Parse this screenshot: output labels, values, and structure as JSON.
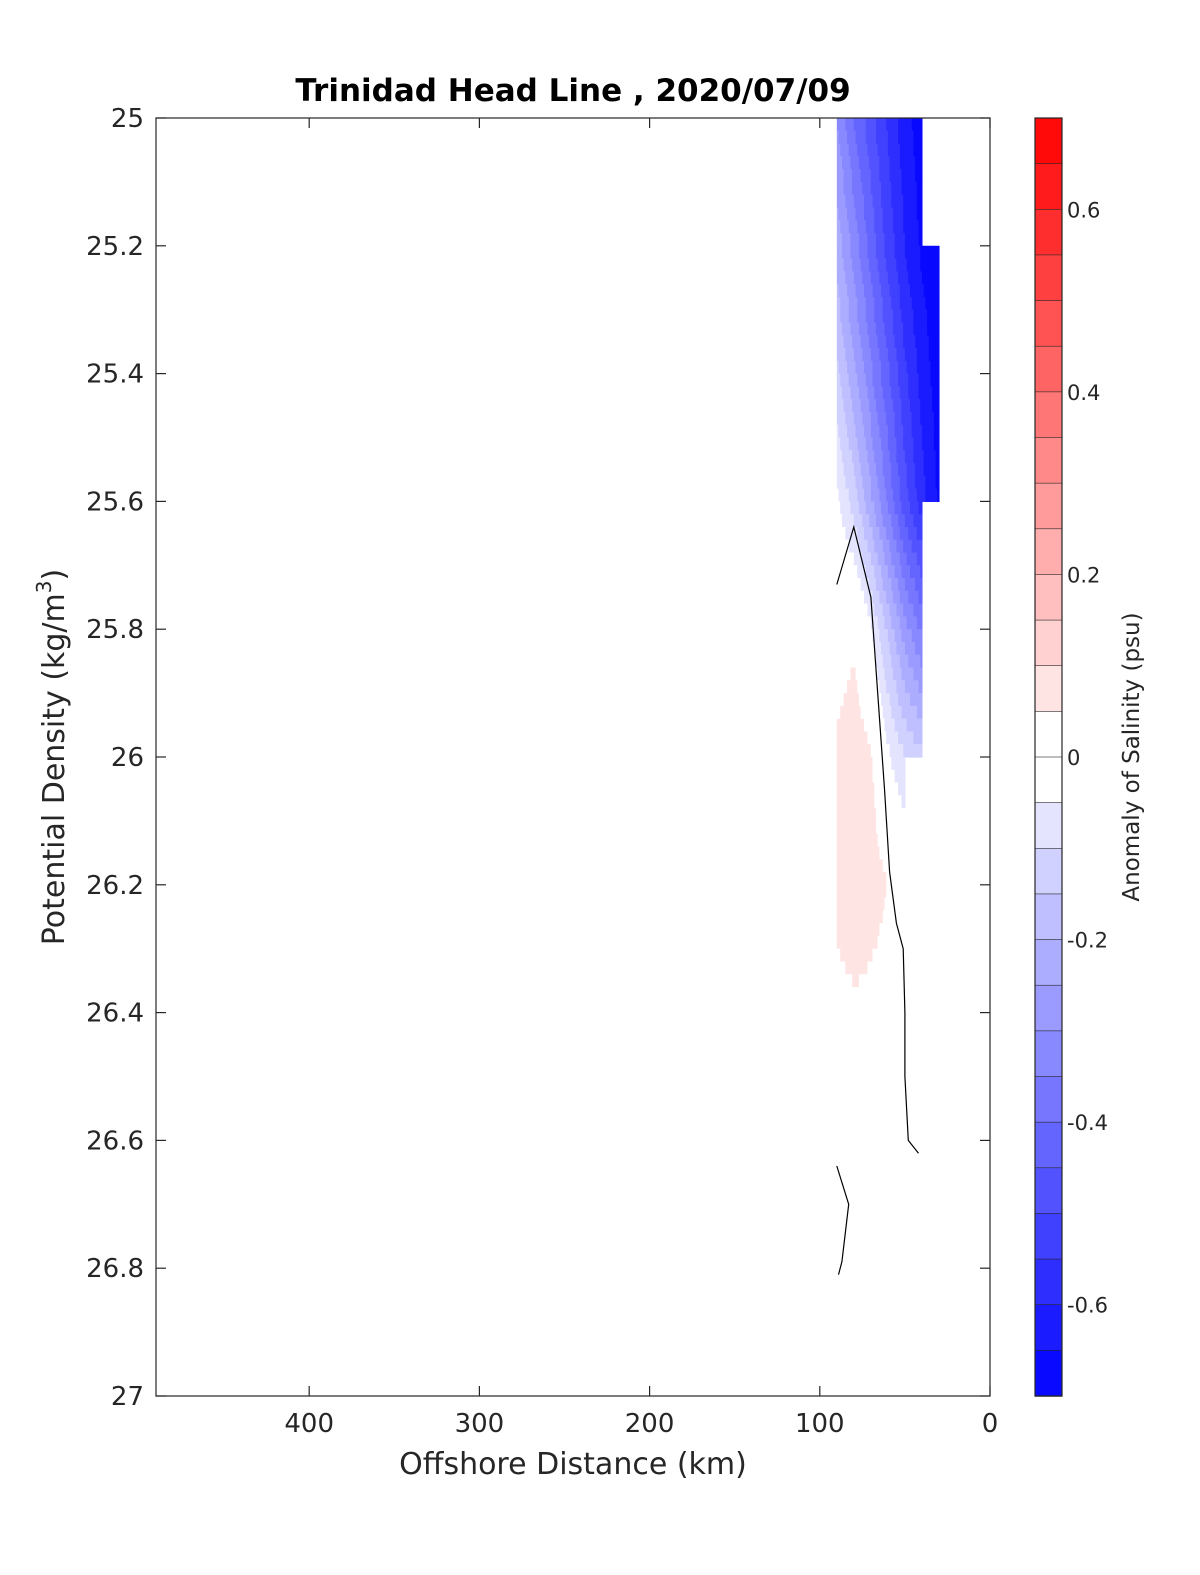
{
  "chart_data": {
    "type": "contour",
    "title": "Trinidad Head Line , 2020/07/09",
    "xlabel": "Offshore Distance (km)",
    "ylabel_main": "Potential Density (kg/m",
    "ylabel_sup": "3",
    "ylabel_close": ")",
    "xlim": [
      490,
      0
    ],
    "ylim": [
      25,
      27
    ],
    "x_reversed": true,
    "y_reversed": true,
    "x_ticks": [
      400,
      300,
      200,
      100,
      0
    ],
    "x_tick_labels": [
      "400",
      "300",
      "200",
      "100",
      "0"
    ],
    "y_ticks": [
      25,
      25.2,
      25.4,
      25.6,
      25.8,
      26,
      26.2,
      26.4,
      26.6,
      26.8,
      27
    ],
    "y_tick_labels": [
      "25",
      "25.2",
      "25.4",
      "25.6",
      "25.8",
      "26",
      "26.2",
      "26.4",
      "26.6",
      "26.8",
      "27"
    ],
    "colorbar": {
      "label": "Anomaly of Salinity (psu)",
      "range": [
        -0.7,
        0.7
      ],
      "step": 0.05,
      "ticks": [
        0.6,
        0.4,
        0.2,
        0,
        -0.2,
        -0.4,
        -0.6
      ],
      "tick_labels": [
        "0.6",
        "0.4",
        "0.2",
        "0",
        "-0.2",
        "-0.4",
        "-0.6"
      ],
      "colormap": "blue-white-red",
      "min_color": "#0000ff",
      "max_color": "#ff0000"
    },
    "station_x": [
      90,
      80,
      70,
      60,
      50,
      40,
      30
    ],
    "density_levels": [
      25.0,
      25.2,
      25.4,
      25.6,
      25.8,
      26.0,
      26.2,
      26.4,
      26.6,
      26.8
    ],
    "anomaly_grid": [
      [
        -0.3,
        -0.4,
        -0.48,
        -0.56,
        -0.63,
        -0.68,
        null
      ],
      [
        -0.22,
        -0.32,
        -0.42,
        -0.52,
        -0.6,
        -0.66,
        -0.69
      ],
      [
        -0.14,
        -0.24,
        -0.34,
        -0.44,
        -0.54,
        -0.62,
        -0.68
      ],
      [
        -0.04,
        -0.12,
        -0.24,
        -0.36,
        -0.48,
        -0.58,
        -0.66
      ],
      [
        0.02,
        0.04,
        -0.04,
        -0.16,
        -0.28,
        -0.36,
        null
      ],
      [
        0.06,
        0.08,
        0.06,
        -0.04,
        -0.1,
        -0.14,
        null
      ],
      [
        0.08,
        0.09,
        0.08,
        0.05,
        0.02,
        null,
        null
      ],
      [
        0.02,
        0.04,
        0.03,
        0.02,
        0.01,
        null,
        null
      ],
      [
        0.01,
        0.02,
        0.02,
        0.01,
        null,
        null,
        null
      ],
      [
        0.01,
        0.02,
        null,
        null,
        null,
        null,
        null
      ]
    ],
    "zero_contours": [
      [
        [
          90,
          25.73
        ],
        [
          80,
          25.64
        ],
        [
          70,
          25.75
        ],
        [
          66,
          25.9
        ],
        [
          62,
          26.05
        ],
        [
          59,
          26.18
        ],
        [
          55,
          26.26
        ],
        [
          51,
          26.3
        ],
        [
          50,
          26.4
        ],
        [
          50,
          26.5
        ],
        [
          48,
          26.6
        ],
        [
          42,
          26.62
        ]
      ],
      [
        [
          90,
          26.64
        ],
        [
          83,
          26.7
        ],
        [
          87,
          26.79
        ],
        [
          89,
          26.81
        ]
      ]
    ]
  }
}
